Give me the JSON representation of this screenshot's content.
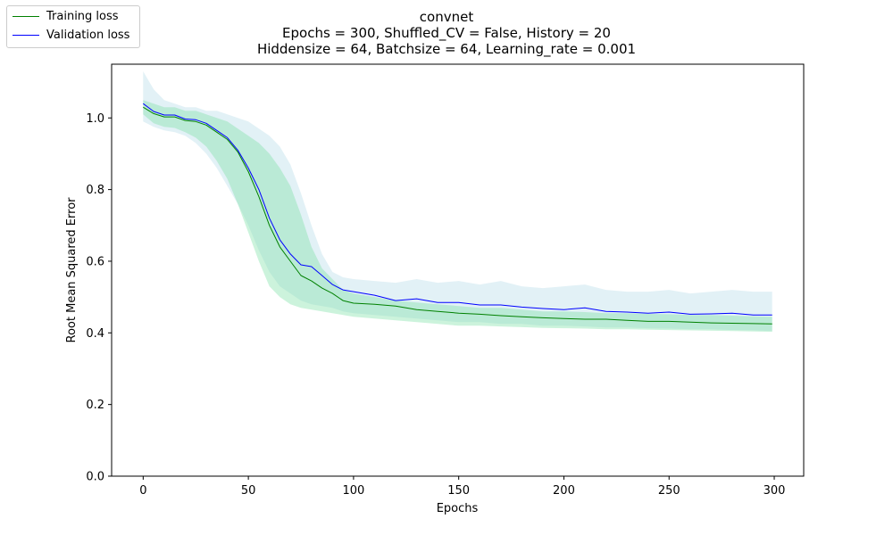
{
  "chart_data": {
    "type": "line",
    "title": "convnet",
    "subtitle_lines": [
      "Epochs = 300, Shuffled_CV = False, History = 20",
      "Hiddensize = 64, Batchsize = 64, Learning_rate = 0.001"
    ],
    "xlabel": "Epochs",
    "ylabel": "Root Mean Squared Error",
    "xlim": [
      -15,
      314
    ],
    "ylim": [
      0,
      1.15
    ],
    "xticks": [
      0,
      50,
      100,
      150,
      200,
      250,
      300
    ],
    "yticks": [
      0.0,
      0.2,
      0.4,
      0.6,
      0.8,
      1.0
    ],
    "ytick_labels": [
      "0.0",
      "0.2",
      "0.4",
      "0.6",
      "0.8",
      "1.0"
    ],
    "grid": false,
    "legend_position": "top-left",
    "x": [
      0,
      5,
      10,
      15,
      20,
      25,
      30,
      35,
      40,
      45,
      50,
      55,
      60,
      65,
      70,
      75,
      80,
      85,
      90,
      95,
      100,
      110,
      120,
      130,
      140,
      150,
      160,
      170,
      180,
      190,
      200,
      210,
      220,
      230,
      240,
      250,
      260,
      270,
      280,
      290,
      299
    ],
    "series": [
      {
        "name": "Training loss",
        "color": "#008000",
        "band_color": "#7fe0a8",
        "values": [
          1.03,
          1.012,
          1.003,
          1.003,
          0.993,
          0.99,
          0.98,
          0.96,
          0.94,
          0.905,
          0.85,
          0.78,
          0.7,
          0.64,
          0.6,
          0.56,
          0.545,
          0.525,
          0.51,
          0.49,
          0.483,
          0.48,
          0.475,
          0.465,
          0.46,
          0.455,
          0.452,
          0.448,
          0.445,
          0.442,
          0.44,
          0.438,
          0.438,
          0.435,
          0.432,
          0.432,
          0.43,
          0.428,
          0.427,
          0.426,
          0.425
        ],
        "lower": [
          1.01,
          0.985,
          0.975,
          0.972,
          0.96,
          0.945,
          0.92,
          0.88,
          0.83,
          0.76,
          0.68,
          0.6,
          0.53,
          0.5,
          0.48,
          0.47,
          0.465,
          0.46,
          0.455,
          0.45,
          0.445,
          0.44,
          0.435,
          0.43,
          0.425,
          0.42,
          0.42,
          0.418,
          0.416,
          0.414,
          0.413,
          0.412,
          0.41,
          0.41,
          0.409,
          0.408,
          0.407,
          0.406,
          0.405,
          0.404,
          0.403
        ],
        "upper": [
          1.05,
          1.04,
          1.03,
          1.03,
          1.02,
          1.02,
          1.01,
          1.0,
          0.99,
          0.97,
          0.95,
          0.93,
          0.9,
          0.86,
          0.81,
          0.73,
          0.64,
          0.58,
          0.55,
          0.52,
          0.51,
          0.5,
          0.49,
          0.485,
          0.48,
          0.475,
          0.47,
          0.47,
          0.465,
          0.46,
          0.46,
          0.458,
          0.455,
          0.455,
          0.453,
          0.452,
          0.45,
          0.45,
          0.448,
          0.446,
          0.445
        ]
      },
      {
        "name": "Validation loss",
        "color": "#0000ff",
        "band_color": "#add8e6",
        "values": [
          1.04,
          1.018,
          1.008,
          1.008,
          0.997,
          0.995,
          0.985,
          0.965,
          0.945,
          0.91,
          0.86,
          0.8,
          0.72,
          0.66,
          0.62,
          0.59,
          0.585,
          0.56,
          0.535,
          0.52,
          0.515,
          0.505,
          0.49,
          0.495,
          0.485,
          0.485,
          0.478,
          0.478,
          0.472,
          0.468,
          0.465,
          0.47,
          0.46,
          0.458,
          0.455,
          0.458,
          0.452,
          0.453,
          0.455,
          0.45,
          0.45
        ],
        "lower": [
          0.99,
          0.975,
          0.965,
          0.96,
          0.95,
          0.93,
          0.9,
          0.86,
          0.81,
          0.76,
          0.7,
          0.63,
          0.57,
          0.53,
          0.51,
          0.49,
          0.48,
          0.475,
          0.47,
          0.46,
          0.455,
          0.45,
          0.445,
          0.44,
          0.435,
          0.43,
          0.43,
          0.425,
          0.425,
          0.42,
          0.42,
          0.418,
          0.415,
          0.415,
          0.413,
          0.412,
          0.41,
          0.41,
          0.408,
          0.407,
          0.405
        ],
        "upper": [
          1.13,
          1.08,
          1.05,
          1.04,
          1.03,
          1.03,
          1.02,
          1.02,
          1.01,
          1.0,
          0.99,
          0.97,
          0.95,
          0.92,
          0.87,
          0.79,
          0.7,
          0.62,
          0.57,
          0.555,
          0.55,
          0.545,
          0.54,
          0.55,
          0.54,
          0.545,
          0.535,
          0.545,
          0.53,
          0.525,
          0.53,
          0.535,
          0.52,
          0.515,
          0.515,
          0.52,
          0.51,
          0.515,
          0.52,
          0.515,
          0.515
        ]
      }
    ]
  }
}
